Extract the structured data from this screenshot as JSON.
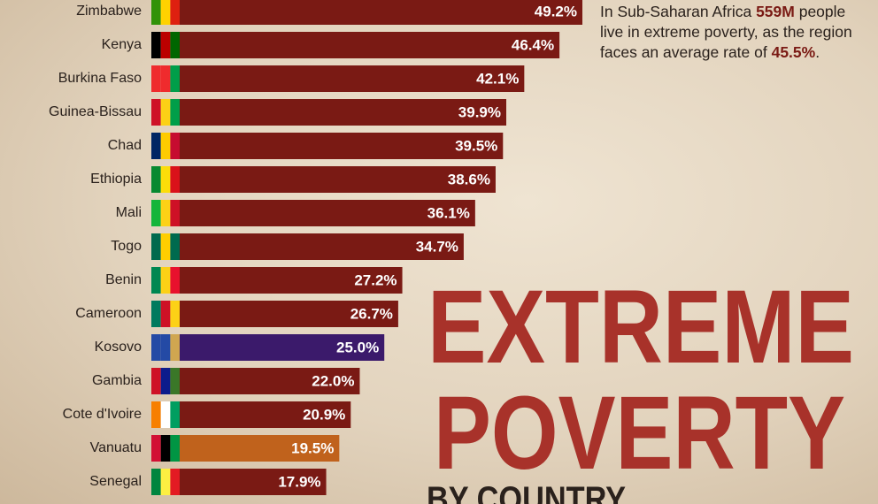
{
  "chart_data": {
    "type": "bar",
    "orientation": "horizontal",
    "title": "EXTREME",
    "title_line2": "POVERTY",
    "subtitle": "BY COUNTRY",
    "annotation": [
      "In Sub-Saharan Africa ",
      "559M",
      " people live in extreme poverty, as the region faces an average rate of ",
      "45.5%",
      "."
    ],
    "categories": [
      "Zimbabwe",
      "Kenya",
      "Burkina Faso",
      "Guinea-Bissau",
      "Chad",
      "Ethiopia",
      "Mali",
      "Togo",
      "Benin",
      "Cameroon",
      "Kosovo",
      "Gambia",
      "Cote d'Ivoire",
      "Vanuatu",
      "Senegal"
    ],
    "values": [
      49.2,
      46.4,
      42.1,
      39.9,
      39.5,
      38.6,
      36.1,
      34.7,
      27.2,
      26.7,
      25.0,
      22.0,
      20.9,
      19.5,
      17.9
    ],
    "value_labels": [
      "49.2%",
      "46.4%",
      "42.1%",
      "39.9%",
      "39.5%",
      "38.6%",
      "36.1%",
      "34.7%",
      "27.2%",
      "26.7%",
      "25.0%",
      "22.0%",
      "20.9%",
      "19.5%",
      "17.9%"
    ],
    "colors": [
      "#7a1a14",
      "#7a1a14",
      "#7a1a14",
      "#7a1a14",
      "#7a1a14",
      "#7a1a14",
      "#7a1a14",
      "#7a1a14",
      "#7a1a14",
      "#7a1a14",
      "#3b1a6b",
      "#7a1a14",
      "#7a1a14",
      "#c0621c",
      "#7a1a14"
    ]
  }
}
